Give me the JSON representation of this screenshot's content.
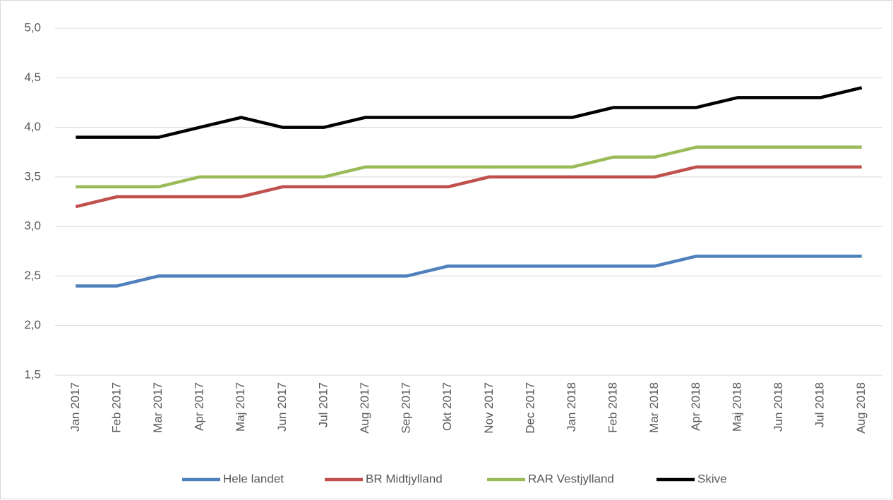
{
  "chart_data": {
    "type": "line",
    "categories": [
      "Jan 2017",
      "Feb 2017",
      "Mar 2017",
      "Apr 2017",
      "Maj 2017",
      "Jun 2017",
      "Jul 2017",
      "Aug 2017",
      "Sep 2017",
      "Okt 2017",
      "Nov 2017",
      "Dec 2017",
      "Jan 2018",
      "Feb 2018",
      "Mar 2018",
      "Apr 2018",
      "Maj 2018",
      "Jun 2018",
      "Jul 2018",
      "Aug 2018"
    ],
    "series": [
      {
        "name": "Hele landet",
        "color": "#4f81bd",
        "values": [
          2.4,
          2.4,
          2.5,
          2.5,
          2.5,
          2.5,
          2.5,
          2.5,
          2.5,
          2.6,
          2.6,
          2.6,
          2.6,
          2.6,
          2.6,
          2.7,
          2.7,
          2.7,
          2.7,
          2.7
        ]
      },
      {
        "name": "BR Midtjylland",
        "color": "#c0504d",
        "values": [
          3.2,
          3.3,
          3.3,
          3.3,
          3.3,
          3.4,
          3.4,
          3.4,
          3.4,
          3.4,
          3.5,
          3.5,
          3.5,
          3.5,
          3.5,
          3.6,
          3.6,
          3.6,
          3.6,
          3.6
        ]
      },
      {
        "name": "RAR Vestjylland",
        "color": "#9bbb59",
        "values": [
          3.4,
          3.4,
          3.4,
          3.5,
          3.5,
          3.5,
          3.5,
          3.6,
          3.6,
          3.6,
          3.6,
          3.6,
          3.6,
          3.7,
          3.7,
          3.8,
          3.8,
          3.8,
          3.8,
          3.8
        ]
      },
      {
        "name": "Skive",
        "color": "#000000",
        "values": [
          3.9,
          3.9,
          3.9,
          4.0,
          4.1,
          4.0,
          4.0,
          4.1,
          4.1,
          4.1,
          4.1,
          4.1,
          4.1,
          4.2,
          4.2,
          4.2,
          4.3,
          4.3,
          4.3,
          4.4
        ]
      }
    ],
    "ylim": [
      1.5,
      5.0
    ],
    "yticks": [
      {
        "value": 1.5,
        "label": "1,5"
      },
      {
        "value": 2.0,
        "label": "2,0"
      },
      {
        "value": 2.5,
        "label": "2,5"
      },
      {
        "value": 3.0,
        "label": "3,0"
      },
      {
        "value": 3.5,
        "label": "3,5"
      },
      {
        "value": 4.0,
        "label": "4,0"
      },
      {
        "value": 4.5,
        "label": "4,5"
      },
      {
        "value": 5.0,
        "label": "5,0"
      }
    ],
    "grid": true,
    "legend": "bottom"
  }
}
